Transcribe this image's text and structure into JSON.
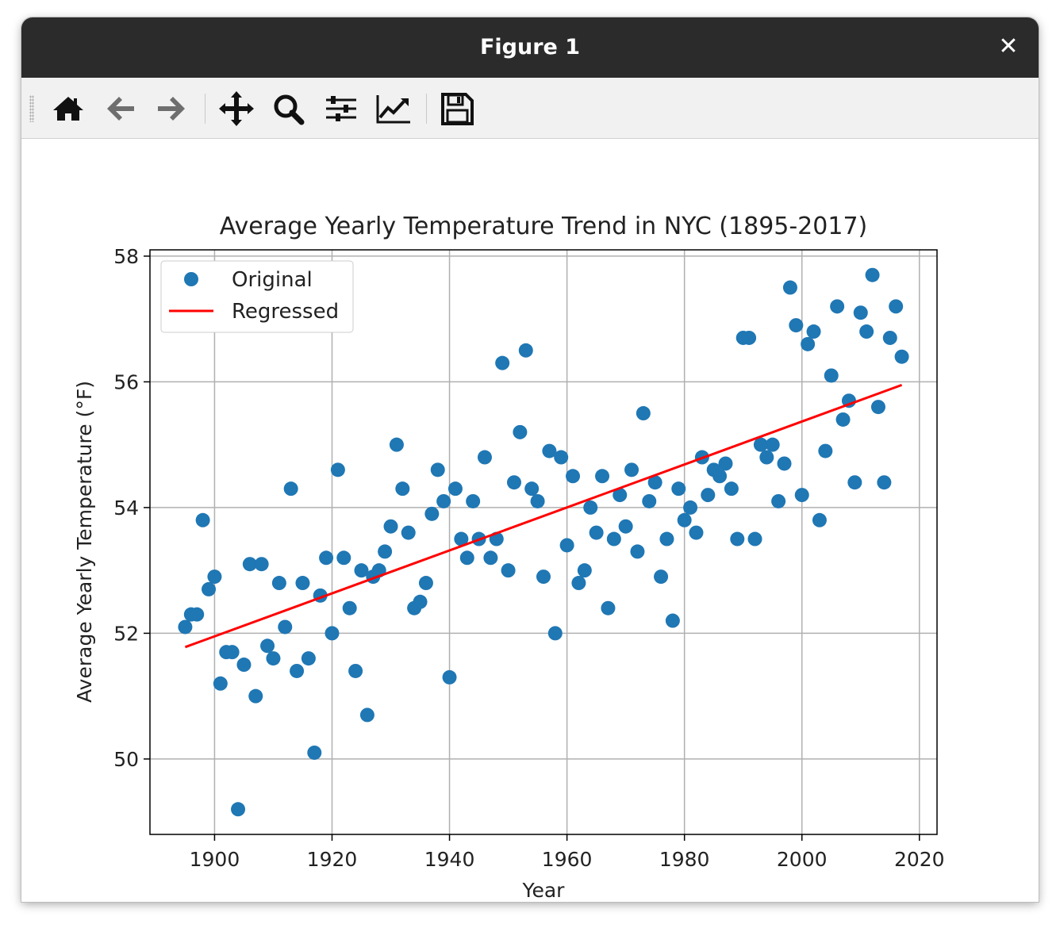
{
  "window": {
    "title": "Figure 1",
    "close_icon": "close-icon"
  },
  "toolbar": {
    "buttons": [
      {
        "name": "home-icon"
      },
      {
        "name": "back-arrow-icon"
      },
      {
        "name": "forward-arrow-icon"
      },
      {
        "name": "pan-icon"
      },
      {
        "name": "zoom-icon"
      },
      {
        "name": "configure-subplots-icon"
      },
      {
        "name": "edit-axis-icon"
      },
      {
        "name": "save-icon"
      }
    ]
  },
  "chart_data": {
    "type": "scatter",
    "title": "Average Yearly Temperature Trend in NYC (1895-2017)",
    "xlabel": "Year",
    "ylabel": "Average Yearly Temperature (°F)",
    "xlim": [
      1889,
      2023
    ],
    "ylim": [
      48.8,
      58.1
    ],
    "xticks": [
      1900,
      1920,
      1940,
      1960,
      1980,
      2000,
      2020
    ],
    "yticks": [
      50,
      52,
      54,
      56,
      58
    ],
    "grid": true,
    "legend_position": "upper left",
    "colors": {
      "points": "#1f77b4",
      "line": "#ff0000"
    },
    "series": [
      {
        "name": "Original",
        "kind": "scatter",
        "x": [
          1895,
          1896,
          1897,
          1898,
          1899,
          1900,
          1901,
          1902,
          1903,
          1904,
          1905,
          1906,
          1907,
          1908,
          1909,
          1910,
          1911,
          1912,
          1913,
          1914,
          1915,
          1916,
          1917,
          1918,
          1919,
          1920,
          1921,
          1922,
          1923,
          1924,
          1925,
          1926,
          1927,
          1928,
          1929,
          1930,
          1931,
          1932,
          1933,
          1934,
          1935,
          1936,
          1937,
          1938,
          1939,
          1940,
          1941,
          1942,
          1943,
          1944,
          1945,
          1946,
          1947,
          1948,
          1949,
          1950,
          1951,
          1952,
          1953,
          1954,
          1955,
          1956,
          1957,
          1958,
          1959,
          1960,
          1961,
          1962,
          1963,
          1964,
          1965,
          1966,
          1967,
          1968,
          1969,
          1970,
          1971,
          1972,
          1973,
          1974,
          1975,
          1976,
          1977,
          1978,
          1979,
          1980,
          1981,
          1982,
          1983,
          1984,
          1985,
          1986,
          1987,
          1988,
          1989,
          1990,
          1991,
          1992,
          1993,
          1994,
          1995,
          1996,
          1997,
          1998,
          1999,
          2000,
          2001,
          2002,
          2003,
          2004,
          2005,
          2006,
          2007,
          2008,
          2009,
          2010,
          2011,
          2012,
          2013,
          2014,
          2015,
          2016,
          2017
        ],
        "y": [
          52.1,
          52.3,
          52.3,
          53.8,
          52.7,
          52.9,
          51.2,
          51.7,
          51.7,
          49.2,
          51.5,
          53.1,
          51.0,
          53.1,
          51.8,
          51.6,
          52.8,
          52.1,
          54.3,
          51.4,
          52.8,
          51.6,
          50.1,
          52.6,
          53.2,
          52.0,
          54.6,
          53.2,
          52.4,
          51.4,
          53.0,
          50.7,
          52.9,
          53.0,
          53.3,
          53.7,
          55.0,
          54.3,
          53.6,
          52.4,
          52.5,
          52.8,
          53.9,
          54.6,
          54.1,
          51.3,
          54.3,
          53.5,
          53.2,
          54.1,
          53.5,
          54.8,
          53.2,
          53.5,
          56.3,
          53.0,
          54.4,
          55.2,
          56.5,
          54.3,
          54.1,
          52.9,
          54.9,
          52.0,
          54.8,
          53.4,
          54.5,
          52.8,
          53.0,
          54.0,
          53.6,
          54.5,
          52.4,
          53.5,
          54.2,
          53.7,
          54.6,
          53.3,
          55.5,
          54.1,
          54.4,
          52.9,
          53.5,
          52.2,
          54.3,
          53.8,
          54.0,
          53.6,
          54.8,
          54.2,
          54.6,
          54.5,
          54.7,
          54.3,
          53.5,
          56.7,
          56.7,
          53.5,
          55.0,
          54.8,
          55.0,
          54.1,
          54.7,
          57.5,
          56.9,
          54.2,
          56.6,
          56.8,
          53.8,
          54.9,
          56.1,
          57.2,
          55.4,
          55.7,
          54.4,
          57.1,
          56.8,
          57.7,
          55.6,
          54.4,
          56.7,
          57.2,
          56.4
        ]
      },
      {
        "name": "Regressed",
        "kind": "line",
        "x": [
          1895,
          2017
        ],
        "y": [
          51.78,
          55.95
        ]
      }
    ]
  }
}
